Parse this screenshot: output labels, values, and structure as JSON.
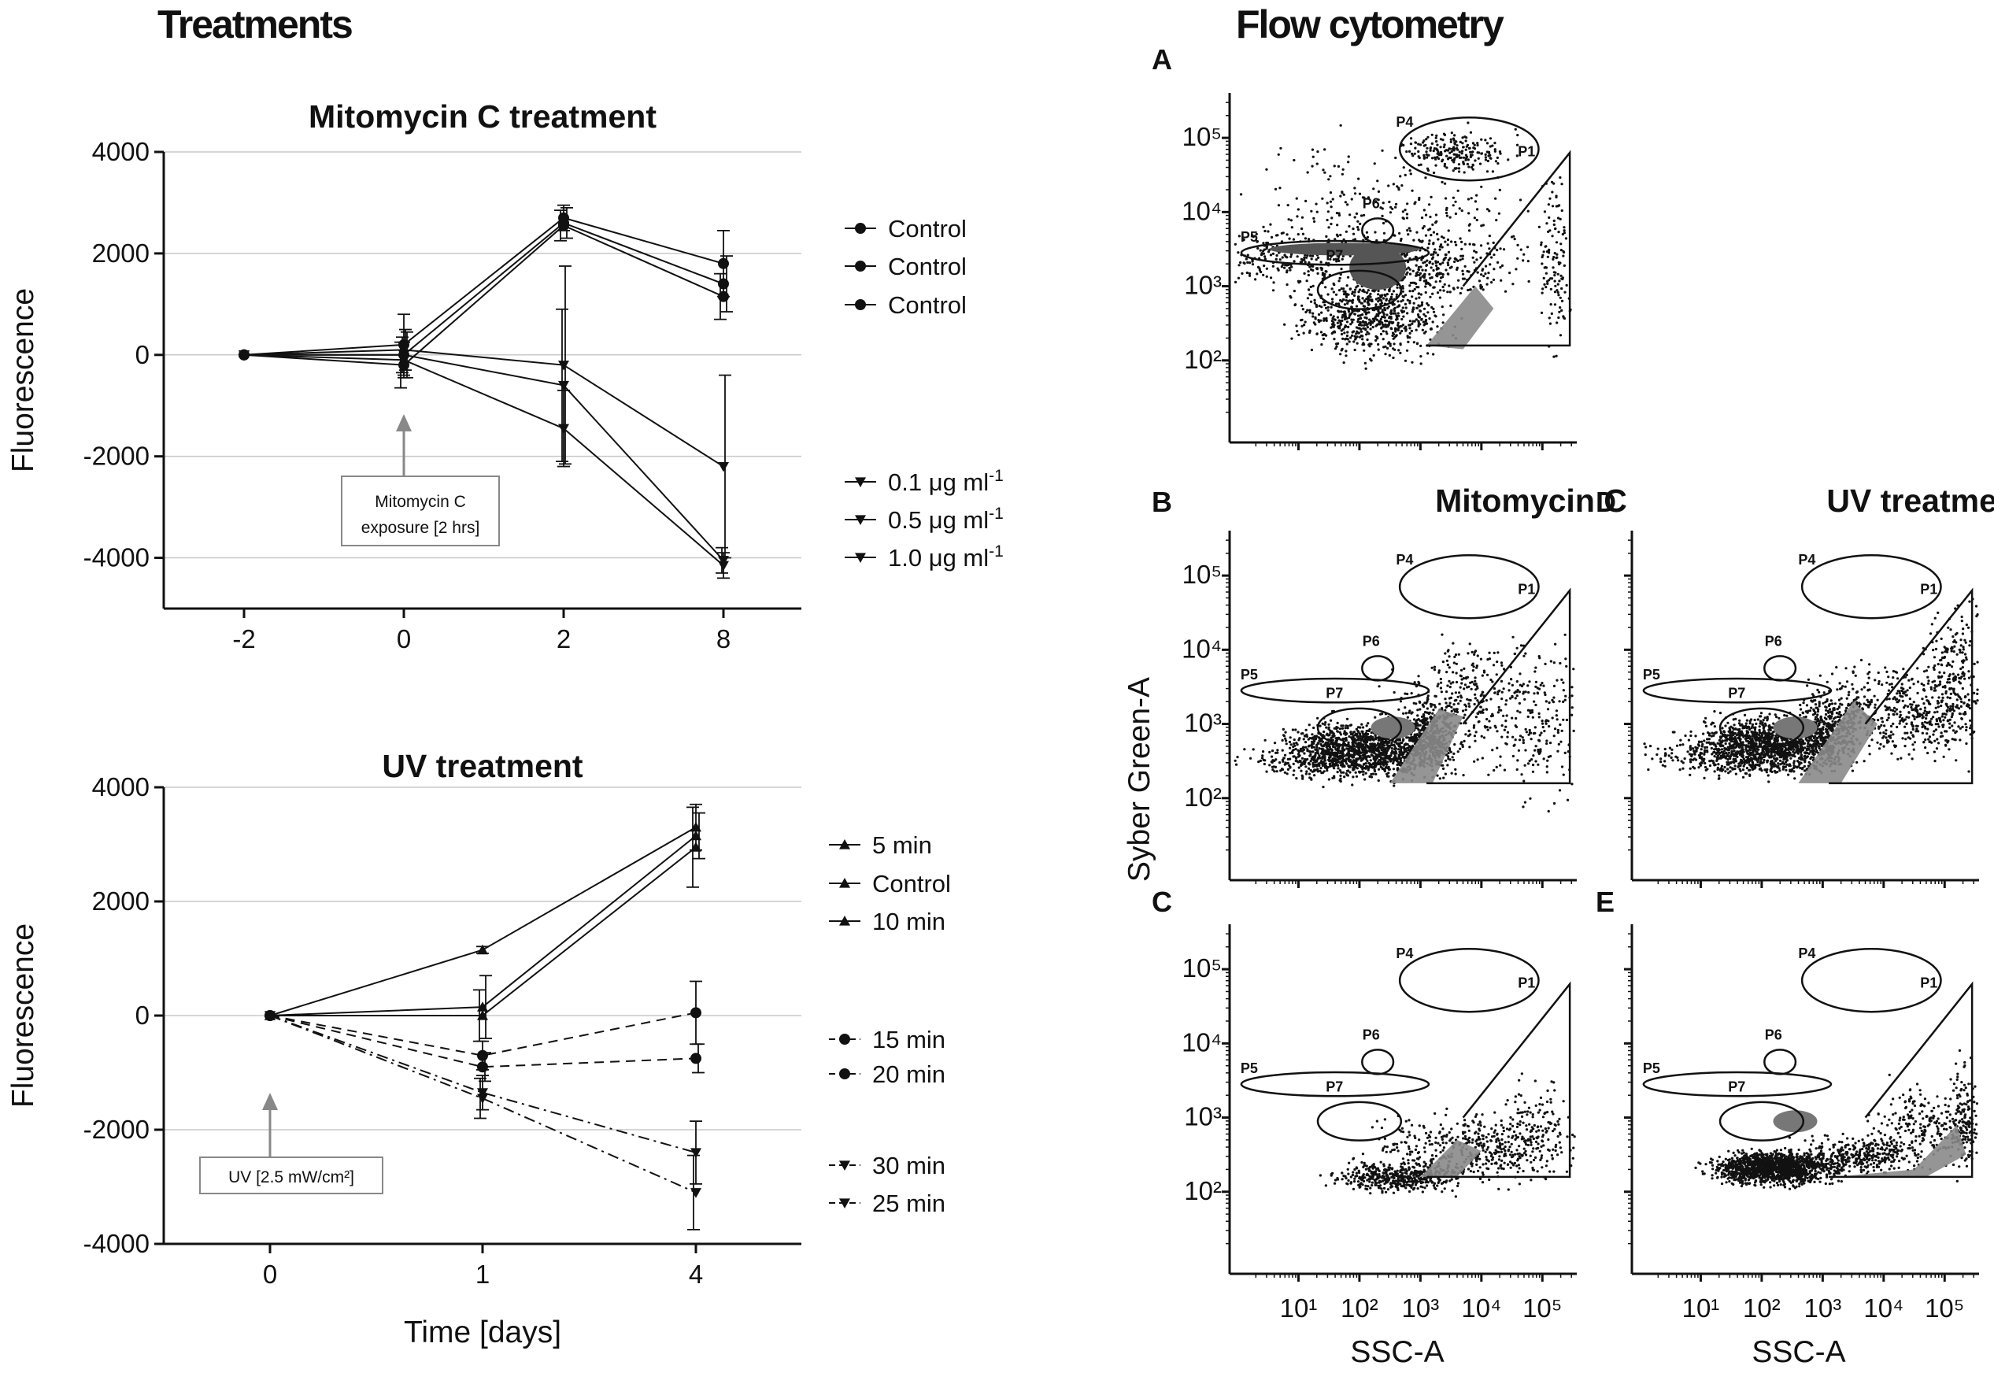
{
  "headers": {
    "left": "Treatments",
    "right": "Flow cytometry"
  },
  "chart_data": [
    {
      "type": "line",
      "title": "Mitomycin C treatment",
      "xlabel": "",
      "ylabel": "Fluorescence",
      "categories": [
        "-2",
        "0",
        "2",
        "8"
      ],
      "yticks": [
        "4000",
        "2000",
        "0",
        "-2000",
        "-4000"
      ],
      "ylim": [
        -5000,
        4000
      ],
      "series": [
        {
          "name": "Control",
          "marker": "circle",
          "dash": "solid",
          "values": [
            0,
            200,
            2700,
            1800
          ],
          "errors": [
            0,
            600,
            250,
            650
          ]
        },
        {
          "name": "Control",
          "marker": "circle",
          "dash": "solid",
          "values": [
            0,
            0,
            2600,
            1400
          ],
          "errors": [
            0,
            450,
            300,
            550
          ]
        },
        {
          "name": "Control",
          "marker": "circle",
          "dash": "solid",
          "values": [
            0,
            -200,
            2550,
            1150
          ],
          "errors": [
            0,
            450,
            300,
            450
          ]
        },
        {
          "name": "0.1 μg ml⁻¹",
          "marker": "triangle-down",
          "dash": "solid",
          "values": [
            0,
            100,
            -200,
            -2200
          ],
          "errors": [
            0,
            400,
            1950,
            1800
          ]
        },
        {
          "name": "0.5 μg ml⁻¹",
          "marker": "triangle-down",
          "dash": "solid",
          "values": [
            0,
            0,
            -600,
            -4050
          ],
          "errors": [
            0,
            350,
            1500,
            250
          ]
        },
        {
          "name": "1.0 μg ml⁻¹",
          "marker": "triangle-down",
          "dash": "solid",
          "values": [
            0,
            -100,
            -1450,
            -4150
          ],
          "errors": [
            0,
            350,
            750,
            250
          ]
        }
      ],
      "annotation": {
        "line1": "Mitomycin C",
        "line2": "exposure [2 hrs]"
      }
    },
    {
      "type": "line",
      "title": "UV treatment",
      "xlabel": "Time [days]",
      "ylabel": "Fluorescence",
      "categories": [
        "0",
        "1",
        "4"
      ],
      "yticks": [
        "4000",
        "2000",
        "0",
        "-2000",
        "-4000"
      ],
      "ylim": [
        -4000,
        4000
      ],
      "series": [
        {
          "name": "5 min",
          "marker": "triangle-up",
          "dash": "solid",
          "values": [
            0,
            1150,
            3300
          ],
          "errors": [
            0,
            60,
            400
          ]
        },
        {
          "name": "Control",
          "marker": "triangle-up",
          "dash": "solid",
          "values": [
            0,
            150,
            3150
          ],
          "errors": [
            0,
            550,
            400
          ]
        },
        {
          "name": "10 min",
          "marker": "triangle-up",
          "dash": "solid",
          "values": [
            0,
            0,
            2950
          ],
          "errors": [
            0,
            450,
            700
          ]
        },
        {
          "name": "15 min",
          "marker": "circle",
          "dash": "dashed",
          "values": [
            0,
            -700,
            50
          ],
          "errors": [
            0,
            250,
            550
          ]
        },
        {
          "name": "20 min",
          "marker": "circle",
          "dash": "dashed",
          "values": [
            0,
            -900,
            -750
          ],
          "errors": [
            0,
            250,
            250
          ]
        },
        {
          "name": "30 min",
          "marker": "triangle-down",
          "dash": "dashdot",
          "values": [
            0,
            -1350,
            -2400
          ],
          "errors": [
            0,
            300,
            550
          ]
        },
        {
          "name": "25 min",
          "marker": "triangle-down",
          "dash": "dashdot",
          "values": [
            0,
            -1450,
            -3100
          ],
          "errors": [
            0,
            350,
            650
          ]
        }
      ],
      "annotation": {
        "text": "UV  [2.5 mW/cm²]"
      }
    },
    {
      "type": "scatter",
      "title": "Flow cytometry",
      "xlabel": "SSC-A",
      "ylabel": "Syber Green-A",
      "xticks": [
        "10¹",
        "10²",
        "10³",
        "10⁴",
        "10⁵"
      ],
      "yticks": [
        "10⁵",
        "10⁴",
        "10³",
        "10²"
      ],
      "xlim_log10": [
        0,
        5.5
      ],
      "ylim_log10": [
        1,
        5.5
      ],
      "gates": [
        "P1",
        "P4",
        "P5",
        "P6",
        "P7"
      ],
      "panels": [
        {
          "label": "A",
          "title": ""
        },
        {
          "label": "B",
          "title": "Mitomycin C"
        },
        {
          "label": "C",
          "title": ""
        },
        {
          "label": "D",
          "title": "UV treatment"
        },
        {
          "label": "E",
          "title": ""
        }
      ]
    }
  ]
}
